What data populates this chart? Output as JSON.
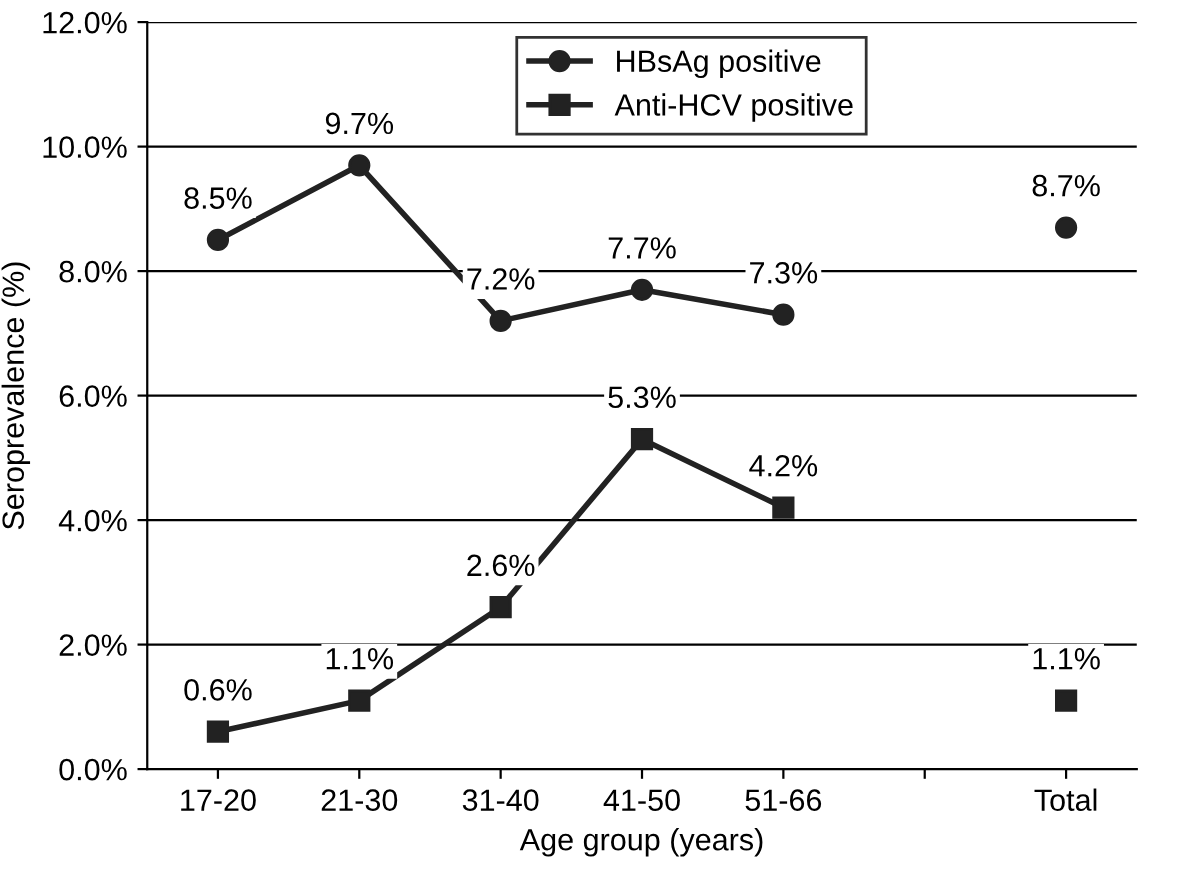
{
  "chart_data": {
    "type": "line",
    "xlabel": "Age group (years)",
    "ylabel": "Seroprevalence (%)",
    "categories": [
      "17-20",
      "21-30",
      "31-40",
      "41-50",
      "51-66",
      null,
      "Total"
    ],
    "series": [
      {
        "name": "HBsAg positive",
        "color": "#222222",
        "marker": "circle",
        "values": [
          8.5,
          9.7,
          7.2,
          7.7,
          7.3,
          null,
          8.7
        ],
        "value_labels": [
          "8.5%",
          "9.7%",
          "7.2%",
          "7.7%",
          "7.3%",
          null,
          "8.7%"
        ]
      },
      {
        "name": "Anti-HCV positive",
        "color": "#222222",
        "marker": "square",
        "values": [
          0.6,
          1.1,
          2.6,
          5.3,
          4.2,
          null,
          1.1
        ],
        "value_labels": [
          "0.6%",
          "1.1%",
          "2.6%",
          "5.3%",
          "4.2%",
          null,
          "1.1%"
        ]
      }
    ],
    "ylim": [
      0,
      12
    ],
    "yticks": [
      {
        "value": 0,
        "label": "0.0%"
      },
      {
        "value": 2,
        "label": "2.0%"
      },
      {
        "value": 4,
        "label": "4.0%"
      },
      {
        "value": 6,
        "label": "6.0%"
      },
      {
        "value": 8,
        "label": "8.0%"
      },
      {
        "value": 10,
        "label": "10.0%"
      },
      {
        "value": 12,
        "label": "12.0%"
      }
    ],
    "grid": "y",
    "legend": "top",
    "line_style": "solid"
  }
}
